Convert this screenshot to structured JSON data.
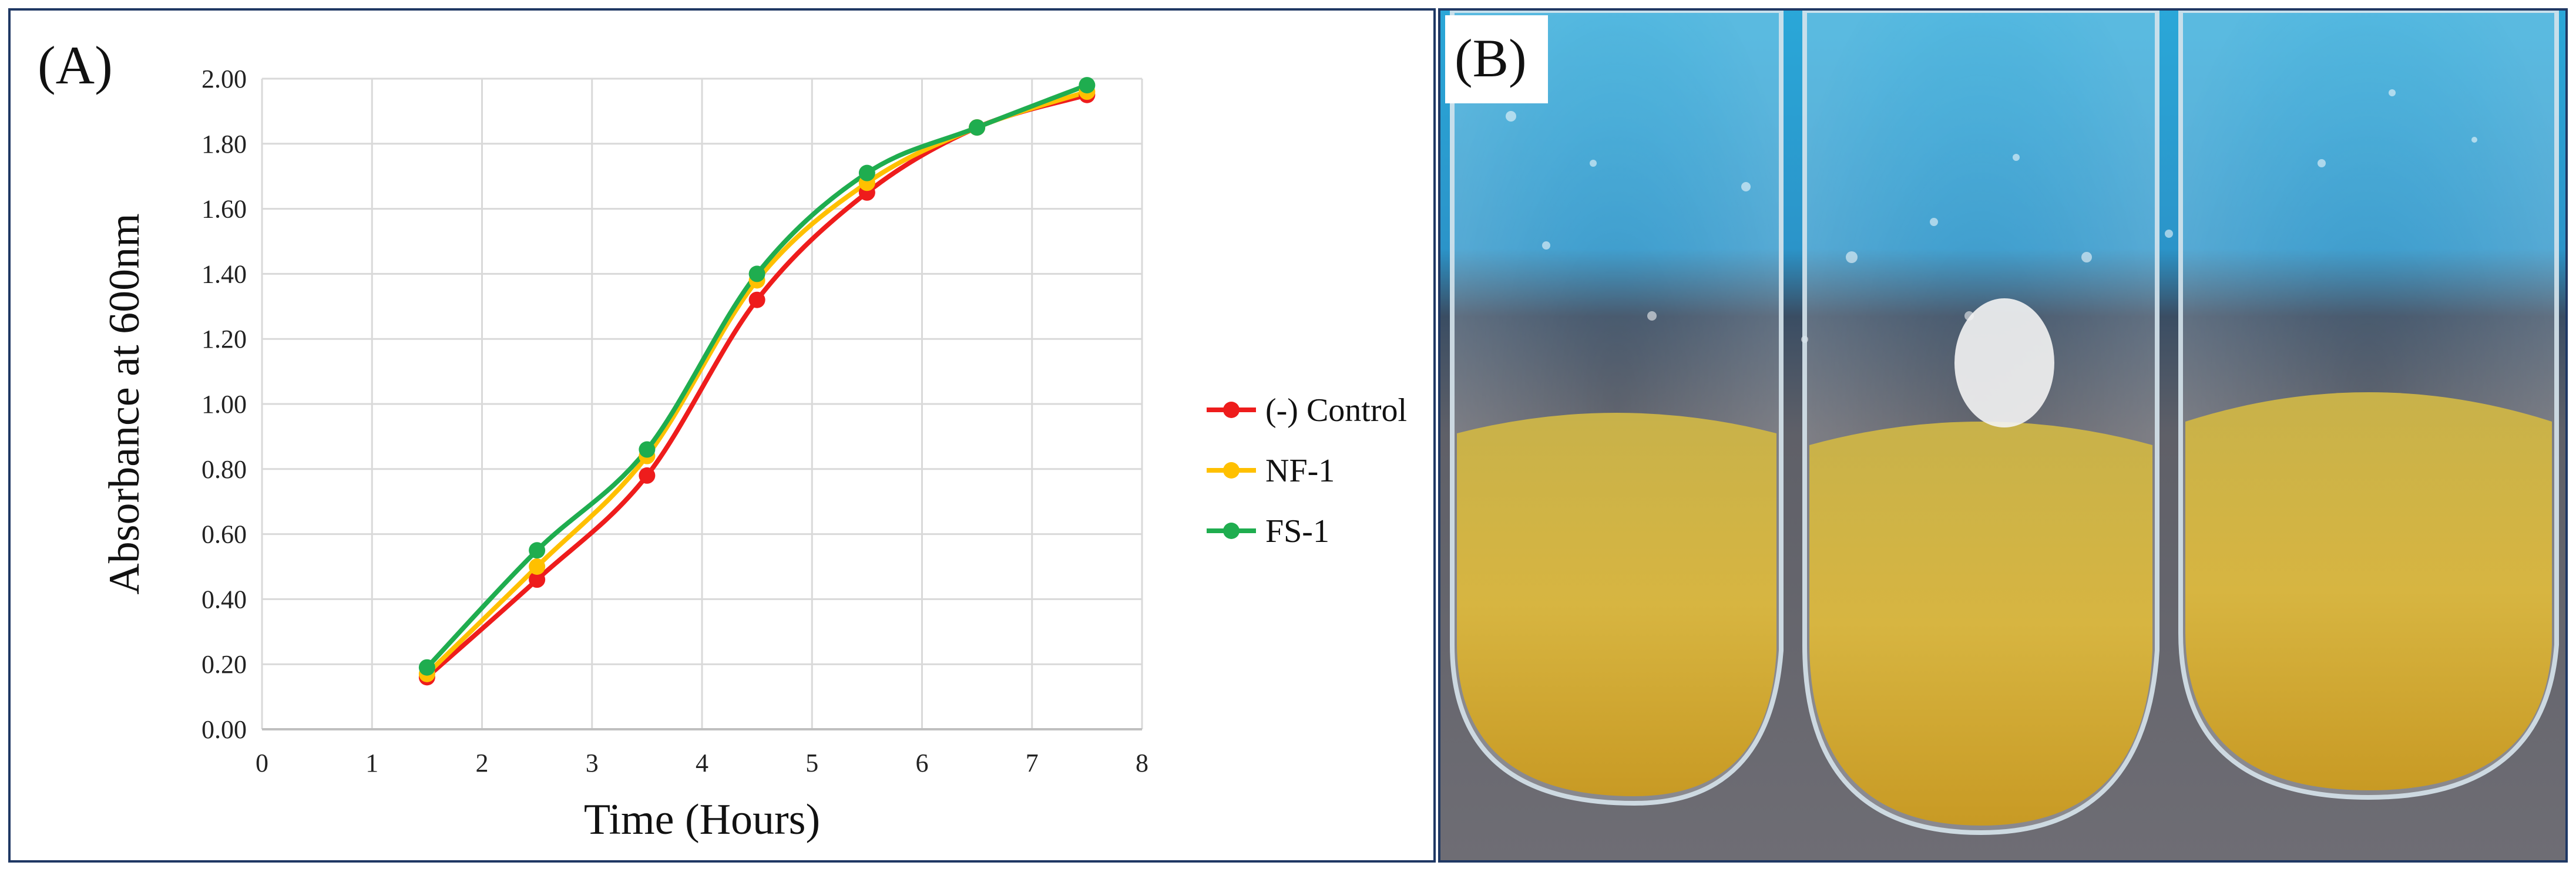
{
  "figure": {
    "panel_a_label": "(A)",
    "panel_b_label": "(B)",
    "panel_b_description_icon": "test-tubes-photo"
  },
  "chart_data": {
    "type": "line",
    "title": "",
    "xlabel": "Time (Hours)",
    "ylabel": "Absorbance  at 600nm",
    "xlim": [
      0,
      8
    ],
    "ylim": [
      0,
      2
    ],
    "x_ticks": [
      0,
      1,
      2,
      3,
      4,
      5,
      6,
      7,
      8
    ],
    "y_ticks": [
      "0.00",
      "0.20",
      "0.40",
      "0.60",
      "0.80",
      "1.00",
      "1.20",
      "1.40",
      "1.60",
      "1.80",
      "2.00"
    ],
    "grid": true,
    "legend_position": "right",
    "x": [
      1.5,
      2.5,
      3.5,
      4.5,
      5.5,
      6.5,
      7.5
    ],
    "series": [
      {
        "name": "(-) Control",
        "color": "#ee1c1c",
        "values": [
          0.16,
          0.46,
          0.78,
          1.32,
          1.65,
          1.85,
          1.95
        ]
      },
      {
        "name": "NF-1",
        "color": "#ffc000",
        "values": [
          0.17,
          0.5,
          0.84,
          1.38,
          1.68,
          1.85,
          1.96
        ]
      },
      {
        "name": "FS-1",
        "color": "#1fad4f",
        "values": [
          0.19,
          0.55,
          0.86,
          1.4,
          1.71,
          1.85,
          1.98
        ]
      }
    ]
  }
}
